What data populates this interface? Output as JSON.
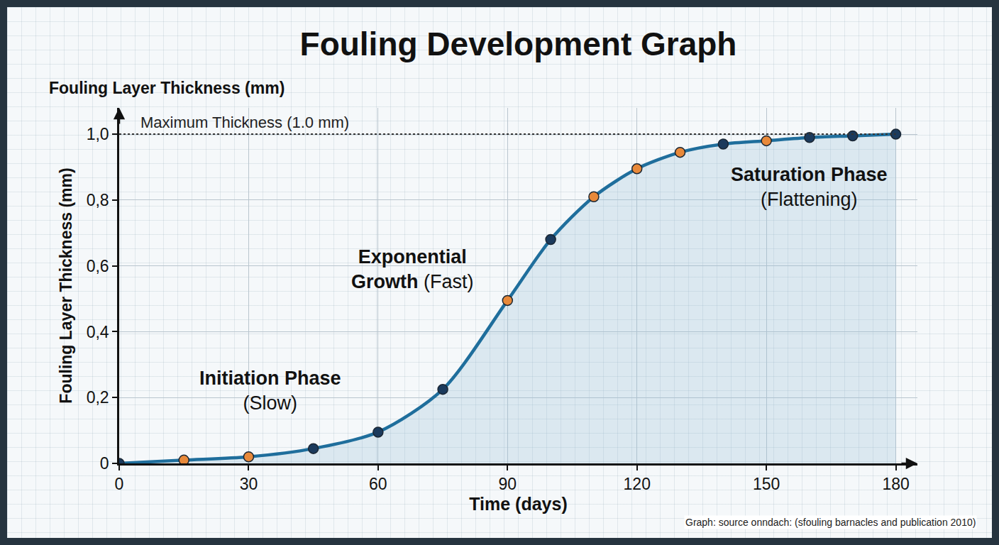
{
  "chart_data": {
    "type": "area",
    "title": "Fouling Development Graph",
    "x_label": "Time (days)",
    "y_label": "Fouling Layer Thickness (mm)",
    "x": [
      0,
      15,
      30,
      45,
      60,
      75,
      90,
      100,
      110,
      120,
      130,
      140,
      150,
      160,
      170,
      180
    ],
    "values": [
      0,
      0.01,
      0.02,
      0.045,
      0.095,
      0.225,
      0.495,
      0.68,
      0.81,
      0.895,
      0.945,
      0.97,
      0.98,
      0.99,
      0.995,
      1.0
    ],
    "color": "#1f6e9c",
    "colors": [
      "#1b3a5c",
      "#e8893a",
      "#e8893a",
      "#1b3a5c",
      "#1b3a5c",
      "#1b3a5c",
      "#e8893a",
      "#1b3a5c",
      "#e8893a",
      "#e8893a",
      "#e8893a",
      "#1b3a5c",
      "#e8893a",
      "#1b3a5c",
      "#1b3a5c",
      "#1b3a5c"
    ],
    "marker": "circle",
    "line_style": "solid",
    "xlim": [
      0,
      185
    ],
    "xticks": [
      0,
      30,
      60,
      90,
      120,
      150,
      180
    ],
    "ylim": [
      0,
      1.08
    ],
    "yticks": [
      0,
      {
        "value": 0.2,
        "label": "0,2"
      },
      {
        "value": 0.4,
        "label": "0,4"
      },
      {
        "value": 0.6,
        "label": "0,6"
      },
      {
        "value": 0.8,
        "label": "0,8"
      },
      {
        "value": 1.0,
        "label": "1,0"
      }
    ],
    "grid": true,
    "reference_line": {
      "value": 1.0,
      "label": "Maximum Thickness (1.0 mm)"
    },
    "phases": [
      {
        "name": "Initiation Phase",
        "detail": "(Slow)"
      },
      {
        "name": "Exponential Growth",
        "detail": "(Fast)"
      },
      {
        "name": "Saturation Phase",
        "detail": "(Flattening)"
      }
    ],
    "source": "Graph: source onndach: (sfouling barnacles and publication 2010)"
  }
}
